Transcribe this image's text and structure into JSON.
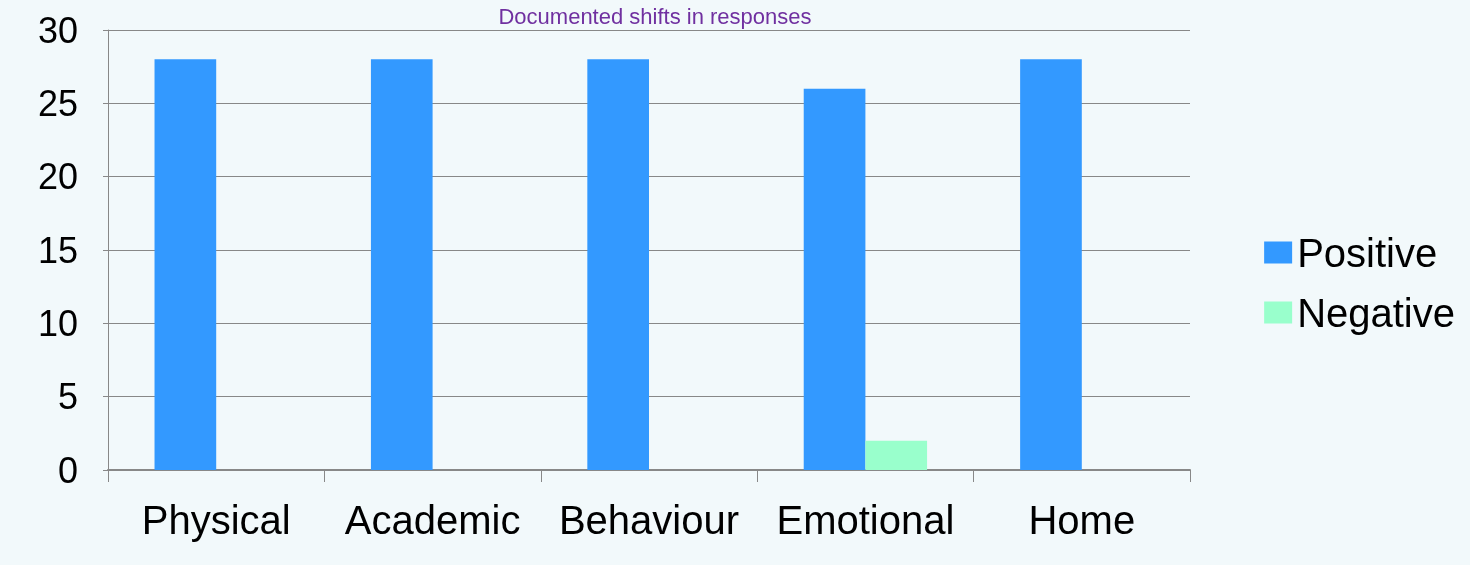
{
  "chart_data": {
    "type": "bar",
    "title": "Documented shifts in responses",
    "categories": [
      "Physical",
      "Academic",
      "Behaviour",
      "Emotional",
      "Home"
    ],
    "series": [
      {
        "name": "Positive",
        "color": "#3399ff",
        "values": [
          28,
          28,
          28,
          26,
          28
        ]
      },
      {
        "name": "Negative",
        "color": "#99ffcc",
        "values": [
          0,
          0,
          0,
          2,
          0
        ]
      }
    ],
    "ylim": [
      0,
      30
    ],
    "yticks": [
      0,
      5,
      10,
      15,
      20,
      25,
      30
    ],
    "grid": "y",
    "legend": "right"
  }
}
